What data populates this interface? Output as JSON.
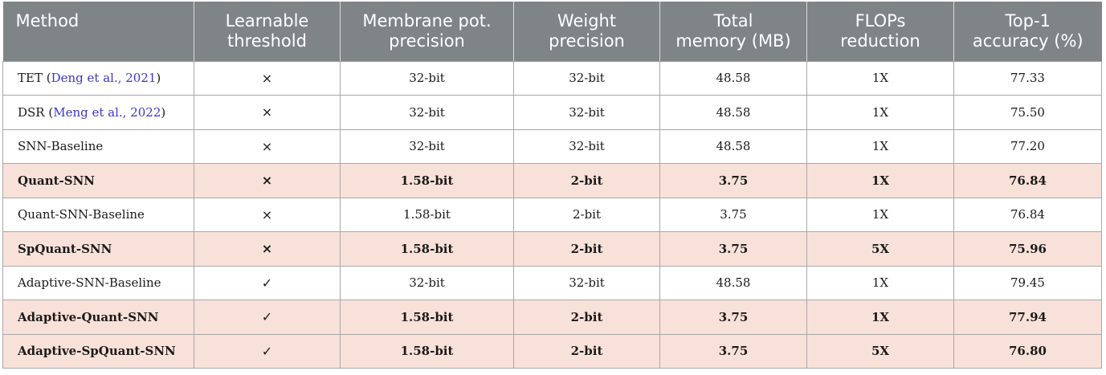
{
  "table": {
    "headers": [
      [
        "Method"
      ],
      [
        "Learnable",
        "threshold"
      ],
      [
        "Membrane pot.",
        "precision"
      ],
      [
        "Weight",
        "precision"
      ],
      [
        "Total",
        "memory (MB)"
      ],
      [
        "FLOPs",
        "reduction"
      ],
      [
        "Top-1",
        "accuracy (%)"
      ]
    ],
    "rows": [
      {
        "method": "TET (",
        "cite": "Deng et al., 2021",
        "method_suffix": ")",
        "threshold": "×",
        "membrane": "32-bit",
        "weight": "32-bit",
        "memory": "48.58",
        "flops": "1X",
        "accuracy": "77.33",
        "highlight": false
      },
      {
        "method": "DSR (",
        "cite": "Meng et al., 2022",
        "method_suffix": ")",
        "threshold": "×",
        "membrane": "32-bit",
        "weight": "32-bit",
        "memory": "48.58",
        "flops": "1X",
        "accuracy": "75.50",
        "highlight": false
      },
      {
        "method": "SNN-Baseline",
        "cite": "",
        "method_suffix": "",
        "threshold": "×",
        "membrane": "32-bit",
        "weight": "32-bit",
        "memory": "48.58",
        "flops": "1X",
        "accuracy": "77.20",
        "highlight": false
      },
      {
        "method": "Quant-SNN",
        "cite": "",
        "method_suffix": "",
        "threshold": "×",
        "membrane": "1.58-bit",
        "weight": "2-bit",
        "memory": "3.75",
        "flops": "1X",
        "accuracy": "76.84",
        "highlight": true
      },
      {
        "method": "Quant-SNN-Baseline",
        "cite": "",
        "method_suffix": "",
        "threshold": "×",
        "membrane": "1.58-bit",
        "weight": "2-bit",
        "memory": "3.75",
        "flops": "1X",
        "accuracy": "76.84",
        "highlight": false
      },
      {
        "method": "SpQuant-SNN",
        "cite": "",
        "method_suffix": "",
        "threshold": "×",
        "membrane": "1.58-bit",
        "weight": "2-bit",
        "memory": "3.75",
        "flops": "5X",
        "accuracy": "75.96",
        "highlight": true
      },
      {
        "method": "Adaptive-SNN-Baseline",
        "cite": "",
        "method_suffix": "",
        "threshold": "✓",
        "membrane": "32-bit",
        "weight": "32-bit",
        "memory": "48.58",
        "flops": "1X",
        "accuracy": "79.45",
        "highlight": false
      },
      {
        "method": "Adaptive-Quant-SNN",
        "cite": "",
        "method_suffix": "",
        "threshold": "✓",
        "membrane": "1.58-bit",
        "weight": "2-bit",
        "memory": "3.75",
        "flops": "1X",
        "accuracy": "77.94",
        "highlight": true
      },
      {
        "method": "Adaptive-SpQuant-SNN",
        "cite": "",
        "method_suffix": "",
        "threshold": "✓",
        "membrane": "1.58-bit",
        "weight": "2-bit",
        "memory": "3.75",
        "flops": "5X",
        "accuracy": "76.80",
        "highlight": true
      }
    ]
  },
  "colors": {
    "header_bg": "#7f8587",
    "highlight_row_bg": "#f8e1d9",
    "citation_link": "#3b37c9"
  }
}
